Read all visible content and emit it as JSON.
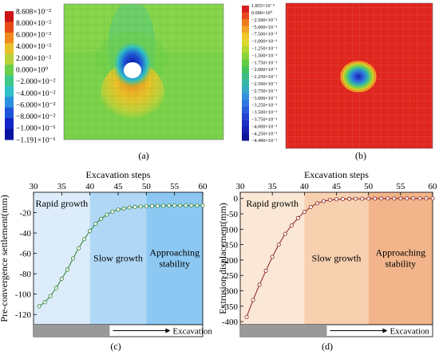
{
  "panels": {
    "a": {
      "label": "(a)",
      "colorbar": {
        "ticks": [
          "8.608×10⁻²",
          "8.000×10⁻²",
          "6.000×10⁻²",
          "4.000×10⁻²",
          "2.000×10⁻²",
          "0.000×10⁰",
          "−2.000×10⁻²",
          "−4.000×10⁻²",
          "−6.000×10⁻²",
          "−8.000×10⁻²",
          "−1.000×10⁻¹",
          "−1.191×10⁻¹"
        ],
        "colors": [
          "#cc1417",
          "#e64a16",
          "#f08a1c",
          "#e8c22a",
          "#b8d23a",
          "#6ccf4a",
          "#3ec889",
          "#2fc0c8",
          "#2c90e0",
          "#1d54d8",
          "#1424c8",
          "#0a12a0"
        ]
      }
    },
    "b": {
      "label": "(b)",
      "colorbar": {
        "ticks": [
          "1.855×10⁻³",
          "0.000×10⁰",
          "−2.500×10⁻²",
          "−5.000×10⁻²",
          "−7.500×10⁻²",
          "−1.000×10⁻¹",
          "−1.250×10⁻¹",
          "−1.500×10⁻¹",
          "−1.750×10⁻¹",
          "−2.000×10⁻¹",
          "−2.250×10⁻¹",
          "−2.500×10⁻¹",
          "−2.750×10⁻¹",
          "−3.000×10⁻¹",
          "−3.250×10⁻¹",
          "−3.500×10⁻¹",
          "−3.750×10⁻¹",
          "−4.000×10⁻¹",
          "−4.250×10⁻¹",
          "−4.490×10⁻¹"
        ],
        "colors": [
          "#d81e1e",
          "#e84a1e",
          "#ee7a1e",
          "#f2a224",
          "#f0c62a",
          "#dcd82e",
          "#b4d832",
          "#8cd23a",
          "#62cc44",
          "#44c45e",
          "#38bc84",
          "#34b6a8",
          "#34a8c8",
          "#3490dc",
          "#2e76e0",
          "#285cdc",
          "#2244d0",
          "#1c2ec4",
          "#1620b0",
          "#101698"
        ]
      }
    },
    "c": {
      "label": "(c)"
    },
    "d": {
      "label": "(d)"
    }
  },
  "chart_data": [
    {
      "type": "line",
      "panel": "c",
      "title": "",
      "xlabel": "Excavation steps",
      "xaxis_position": "top",
      "ylabel": "Pre-convergence settlement(mm)",
      "xlim": [
        30,
        60
      ],
      "ylim": [
        -130,
        0
      ],
      "xticks": [
        30,
        35,
        40,
        45,
        50,
        55,
        60
      ],
      "yticks": [
        -120,
        -100,
        -80,
        -60,
        -40,
        -20
      ],
      "x": [
        31,
        32,
        33,
        34,
        35,
        36,
        37,
        38,
        39,
        40,
        41,
        42,
        43,
        44,
        45,
        46,
        47,
        48,
        49,
        50,
        51,
        52,
        53,
        54,
        55,
        56,
        57,
        58,
        59,
        60
      ],
      "y": [
        -112,
        -108,
        -102,
        -94,
        -85,
        -76,
        -65,
        -55,
        -46,
        -38,
        -31,
        -26,
        -22,
        -19,
        -17,
        -16,
        -15,
        -14.5,
        -14,
        -13.8,
        -13.5,
        -13.3,
        -13.2,
        -13.1,
        -13,
        -13,
        -13,
        -13,
        -13,
        -13
      ],
      "regions": [
        {
          "label": "Rapid growth",
          "x_start": 30,
          "x_end": 40,
          "color": "#dcecfa"
        },
        {
          "label": "Slow growth",
          "x_start": 40,
          "x_end": 50,
          "color": "#b0d8f6"
        },
        {
          "label": "Approaching stability",
          "x_start": 50,
          "x_end": 60,
          "color": "#8cc8f2"
        }
      ],
      "line_color": "#2f7d2f",
      "excavation_label": "Excavation"
    },
    {
      "type": "line",
      "panel": "d",
      "title": "",
      "xlabel": "Excavation steps",
      "xaxis_position": "top",
      "ylabel": "Extrusion displacement(mm)",
      "xlim": [
        30,
        60
      ],
      "ylim": [
        -410,
        20
      ],
      "xticks": [
        30,
        35,
        40,
        45,
        50,
        55,
        60
      ],
      "yticks": [
        -400,
        -350,
        -300,
        -250,
        -200,
        -150,
        -100,
        -50,
        0
      ],
      "x": [
        31,
        32,
        33,
        34,
        35,
        36,
        37,
        38,
        39,
        40,
        41,
        42,
        43,
        44,
        45,
        46,
        47,
        48,
        49,
        50,
        51,
        52,
        53,
        54,
        55,
        56,
        57,
        58,
        59,
        60
      ],
      "y": [
        -385,
        -330,
        -280,
        -235,
        -190,
        -150,
        -115,
        -88,
        -64,
        -44,
        -28,
        -16,
        -9,
        -5,
        -3,
        -2,
        -1.5,
        -1,
        -1,
        -0.8,
        -0.6,
        -0.5,
        -0.4,
        -0.3,
        -0.2,
        -0.1,
        0,
        0,
        0,
        0
      ],
      "regions": [
        {
          "label": "Rapid growth",
          "x_start": 30,
          "x_end": 40,
          "color": "#fbe7d6"
        },
        {
          "label": "Slow growth",
          "x_start": 40,
          "x_end": 50,
          "color": "#f7d0b0"
        },
        {
          "label": "Approaching stability",
          "x_start": 50,
          "x_end": 60,
          "color": "#f2b48a"
        }
      ],
      "line_color": "#8a1f1f",
      "excavation_label": "Excavation"
    }
  ]
}
